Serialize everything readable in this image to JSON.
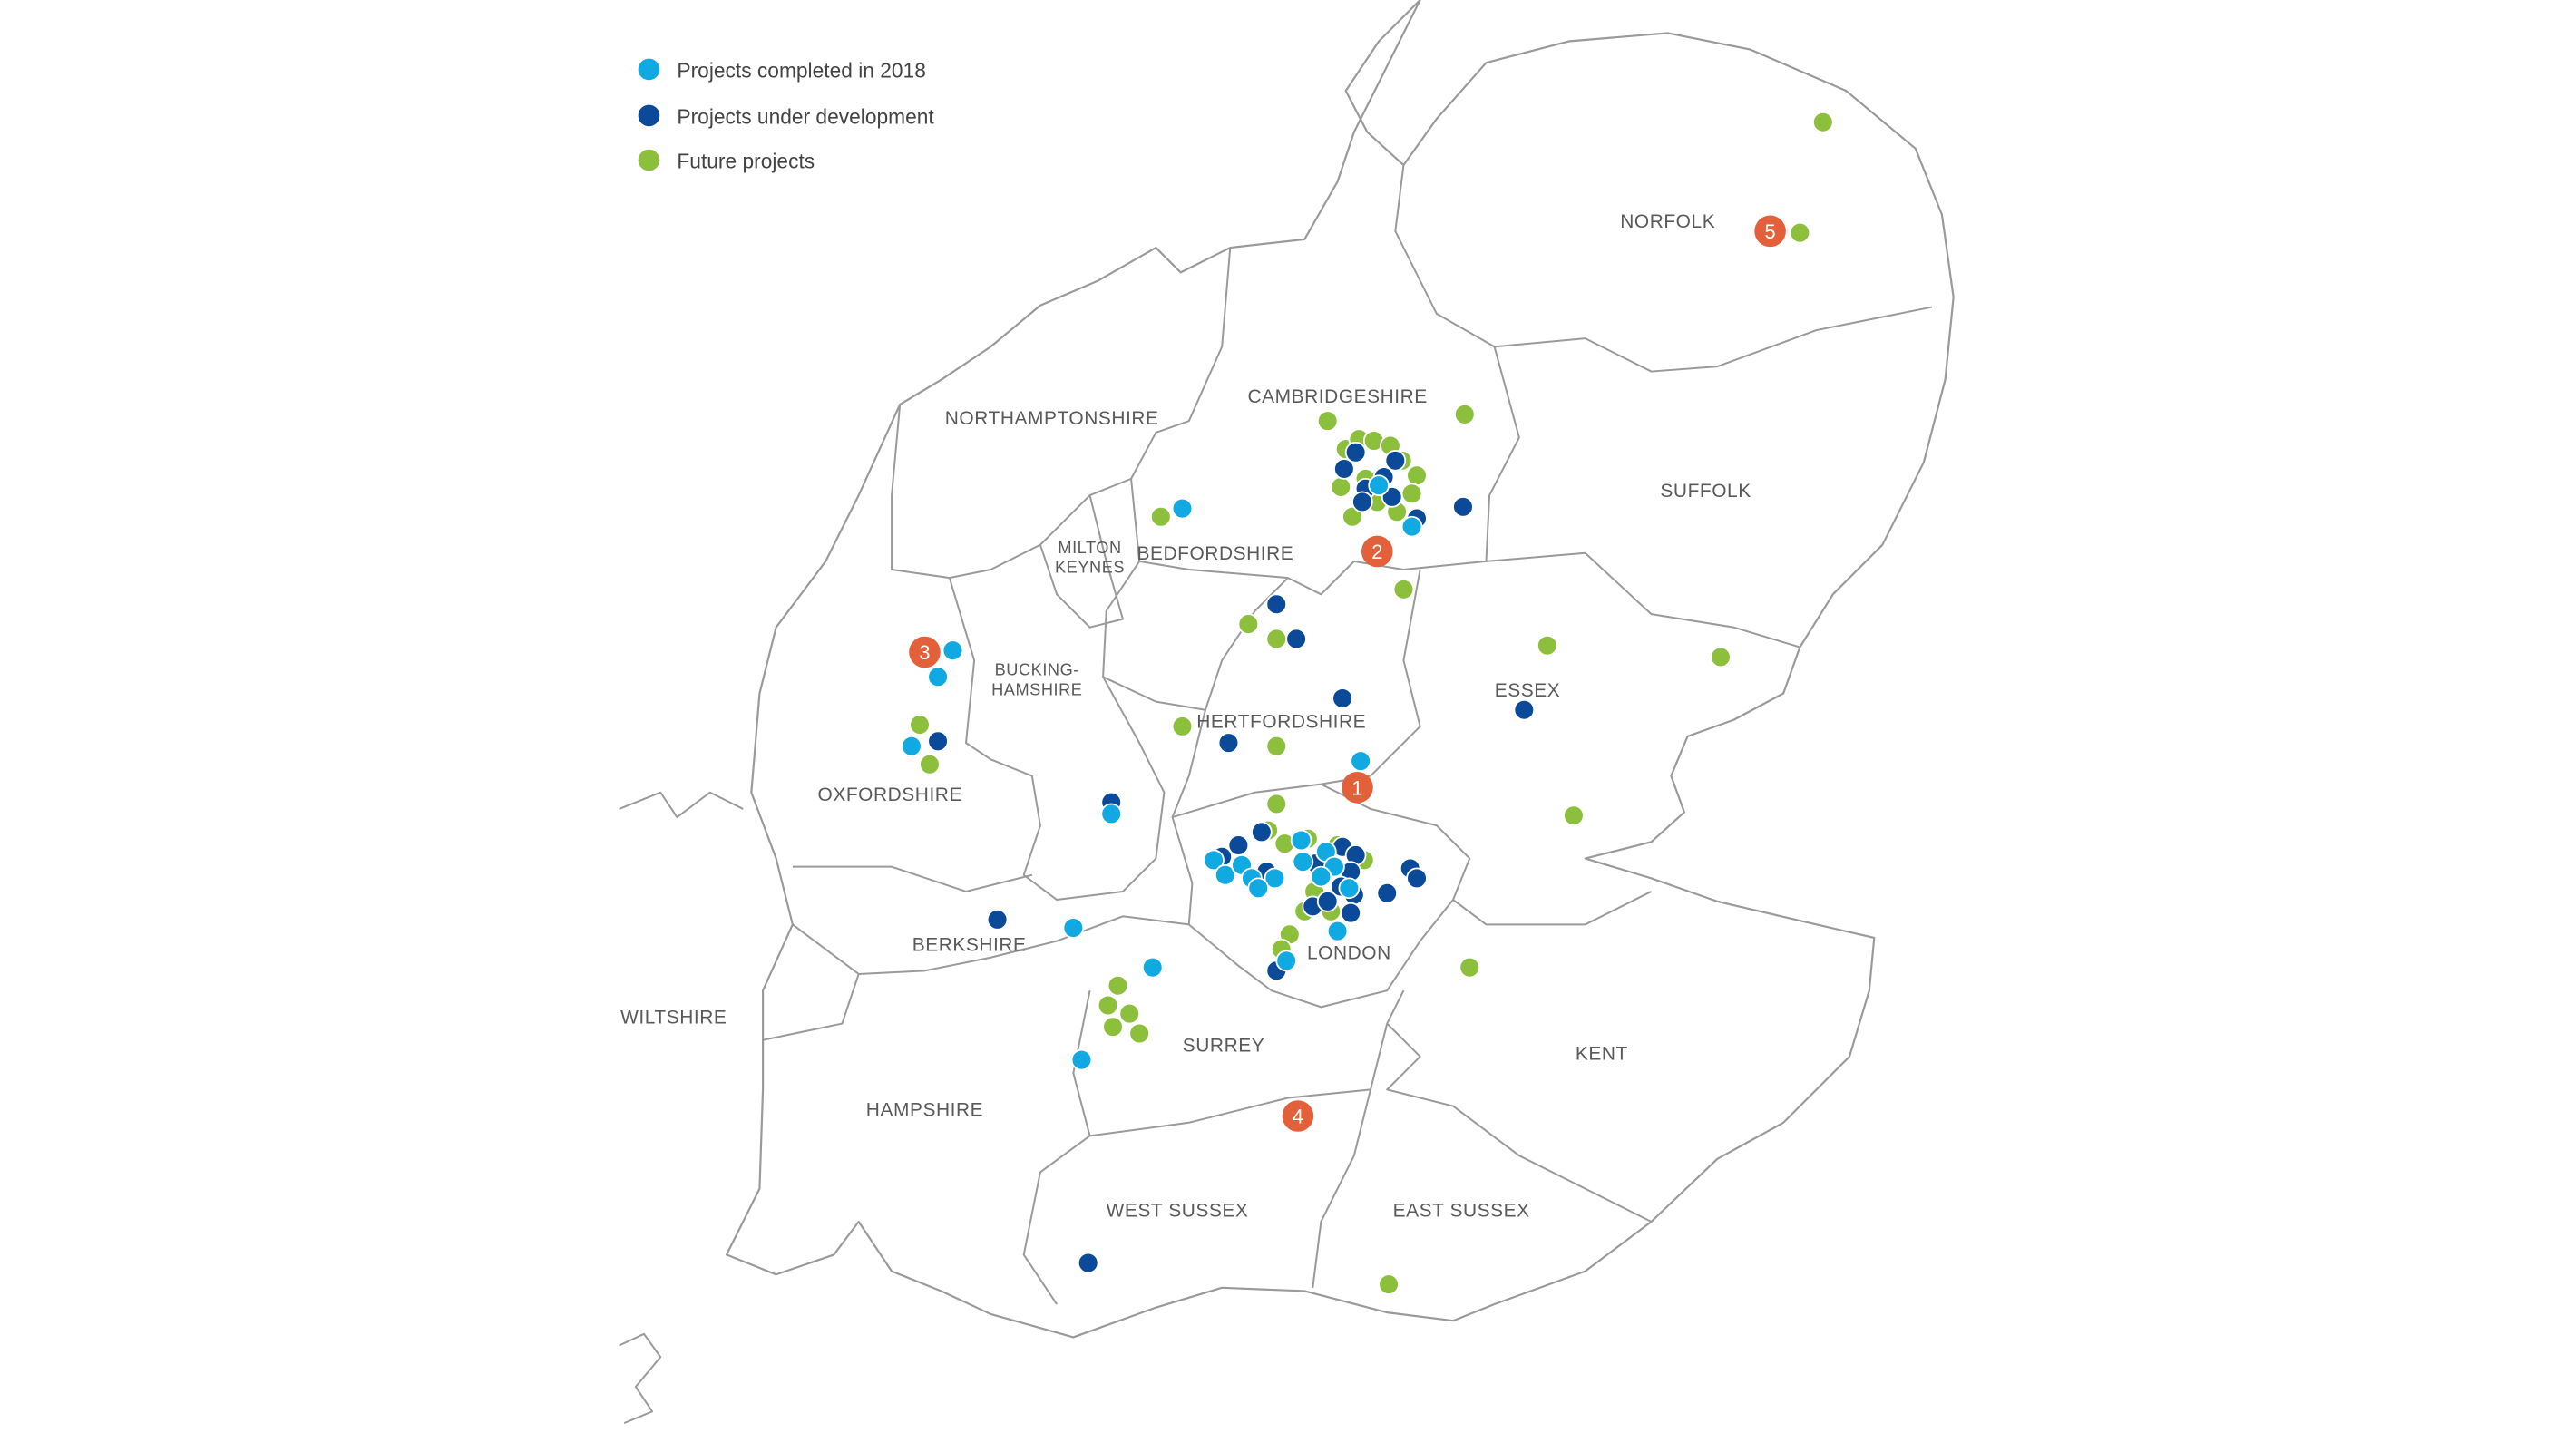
{
  "legend": [
    {
      "label": "Projects completed in 2018",
      "color": "#10a9e2"
    },
    {
      "label": "Projects under development",
      "color": "#0b4a98"
    },
    {
      "label": "Future projects",
      "color": "#8cbf3c"
    }
  ],
  "counties": {
    "norfolk": "NORFOLK",
    "cambridgeshire": "CAMBRIDGESHIRE",
    "northamptonshire": "NORTHAMPTONSHIRE",
    "suffolk": "SUFFOLK",
    "milton_keynes_1": "MILTON",
    "milton_keynes_2": "KEYNES",
    "bedfordshire": "BEDFORDSHIRE",
    "buckinghamshire_1": "BUCKING-",
    "buckinghamshire_2": "HAMSHIRE",
    "essex": "ESSEX",
    "hertfordshire": "HERTFORDSHIRE",
    "oxfordshire": "OXFORDSHIRE",
    "london": "LONDON",
    "berkshire": "BERKSHIRE",
    "wiltshire": "WILTSHIRE",
    "surrey": "SURREY",
    "kent": "KENT",
    "hampshire": "HAMPSHIRE",
    "west_sussex": "WEST SUSSEX",
    "east_sussex": "EAST SUSSEX"
  },
  "numbered_markers": {
    "color": "#e2603a",
    "labels": [
      "1",
      "2",
      "3",
      "4",
      "5"
    ]
  }
}
